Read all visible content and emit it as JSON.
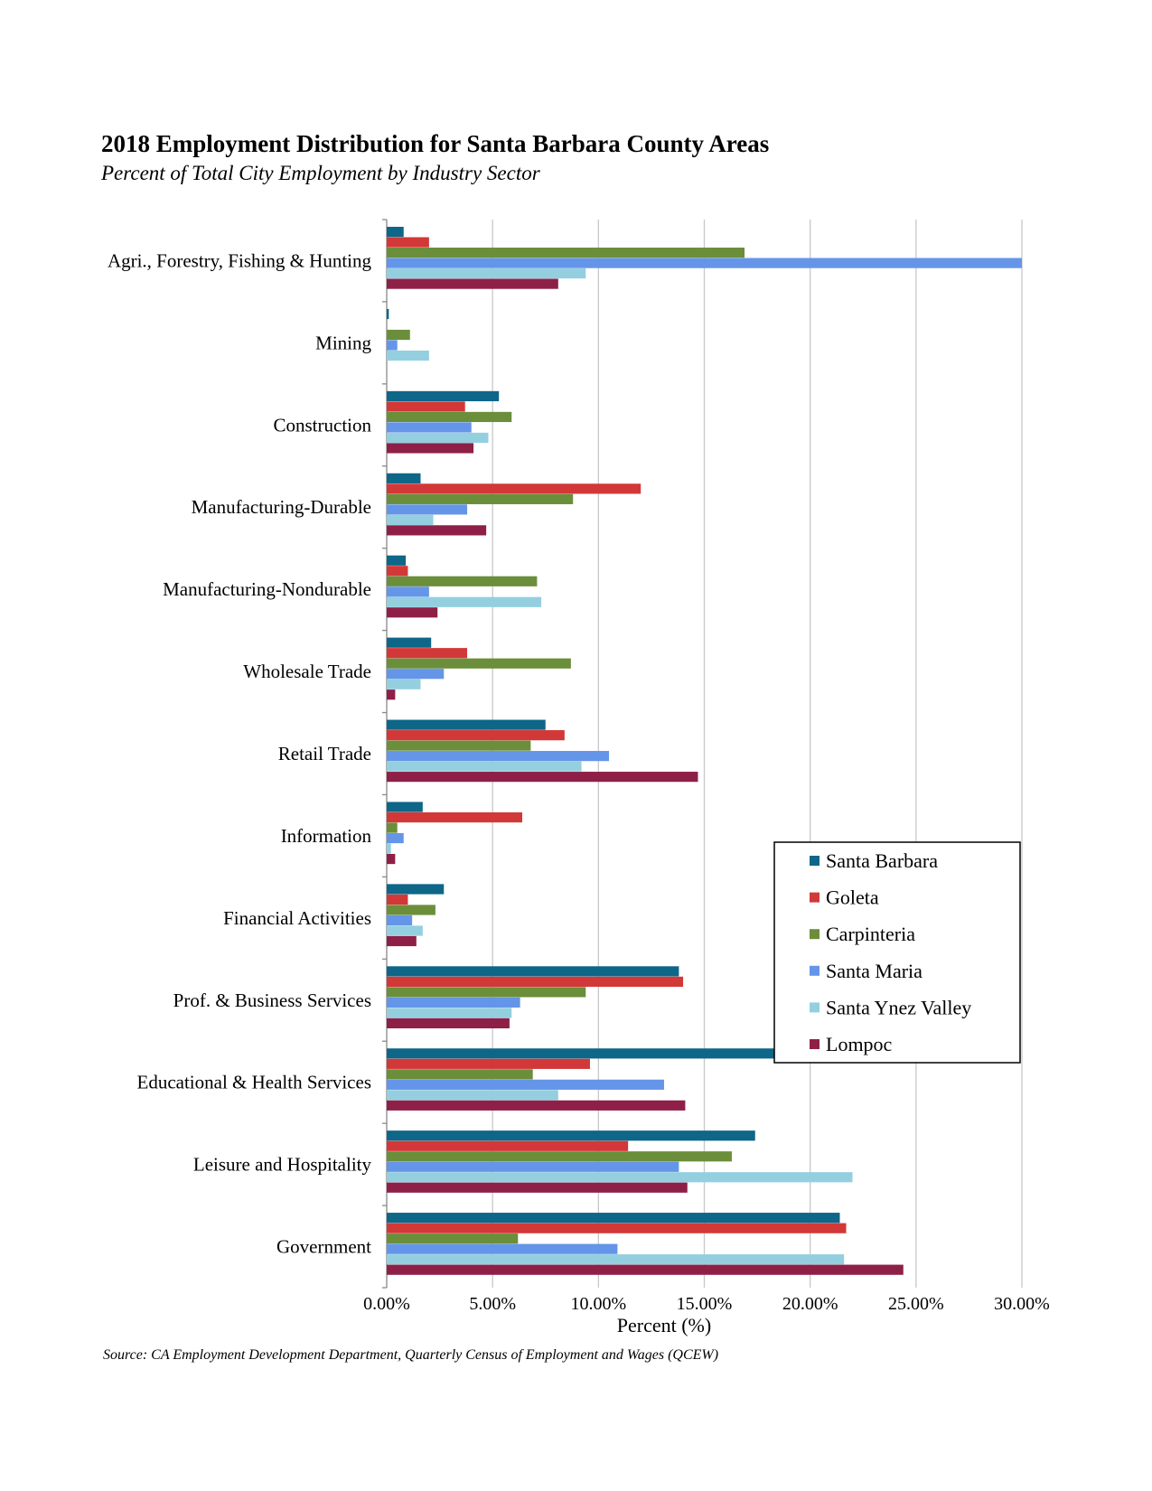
{
  "title": "2018 Employment Distribution for Santa Barbara County Areas",
  "subtitle": "Percent of Total City Employment by Industry Sector",
  "source": "Source: CA Employment Development Department, Quarterly Census of Employment and Wages (QCEW)",
  "chart_data": {
    "type": "bar",
    "orientation": "horizontal",
    "title": "2018 Employment Distribution for Santa Barbara County Areas",
    "subtitle": "Percent of Total City Employment by Industry Sector",
    "xlabel": "Percent (%)",
    "ylabel": "",
    "xlim": [
      0,
      30
    ],
    "xticks": [
      "0.00%",
      "5.00%",
      "10.00%",
      "15.00%",
      "20.00%",
      "25.00%",
      "30.00%"
    ],
    "grid": true,
    "legend_position": "right",
    "categories": [
      "Agri., Forestry, Fishing & Hunting",
      "Mining",
      "Construction",
      "Manufacturing-Durable",
      "Manufacturing-Nondurable",
      "Wholesale Trade",
      "Retail Trade",
      "Information",
      "Financial Activities",
      "Prof. & Business Services",
      "Educational & Health Services",
      "Leisure and Hospitality",
      "Government"
    ],
    "series": [
      {
        "name": "Santa Barbara",
        "color": "#0e6688",
        "values": [
          0.8,
          0.1,
          5.3,
          1.6,
          0.9,
          2.1,
          7.5,
          1.7,
          2.7,
          13.8,
          18.3,
          17.4,
          21.4
        ]
      },
      {
        "name": "Goleta",
        "color": "#d23838",
        "values": [
          2.0,
          0.0,
          3.7,
          12.0,
          1.0,
          3.8,
          8.4,
          6.4,
          1.0,
          14.0,
          9.6,
          11.4,
          21.7
        ]
      },
      {
        "name": "Carpinteria",
        "color": "#6b8e3b",
        "values": [
          16.9,
          1.1,
          5.9,
          8.8,
          7.1,
          8.7,
          6.8,
          0.5,
          2.3,
          9.4,
          6.9,
          16.3,
          6.2
        ]
      },
      {
        "name": "Santa Maria",
        "color": "#6495e8",
        "values": [
          30.0,
          0.5,
          4.0,
          3.8,
          2.0,
          2.7,
          10.5,
          0.8,
          1.2,
          6.3,
          13.1,
          13.8,
          10.9
        ]
      },
      {
        "name": "Santa Ynez Valley",
        "color": "#94cfe0",
        "values": [
          9.4,
          2.0,
          4.8,
          2.2,
          7.3,
          1.6,
          9.2,
          0.2,
          1.7,
          5.9,
          8.1,
          22.0,
          21.6
        ]
      },
      {
        "name": "Lompoc",
        "color": "#8e2048",
        "values": [
          8.1,
          0.0,
          4.1,
          4.7,
          2.4,
          0.4,
          14.7,
          0.4,
          1.4,
          5.8,
          14.1,
          14.2,
          24.4
        ]
      }
    ]
  }
}
